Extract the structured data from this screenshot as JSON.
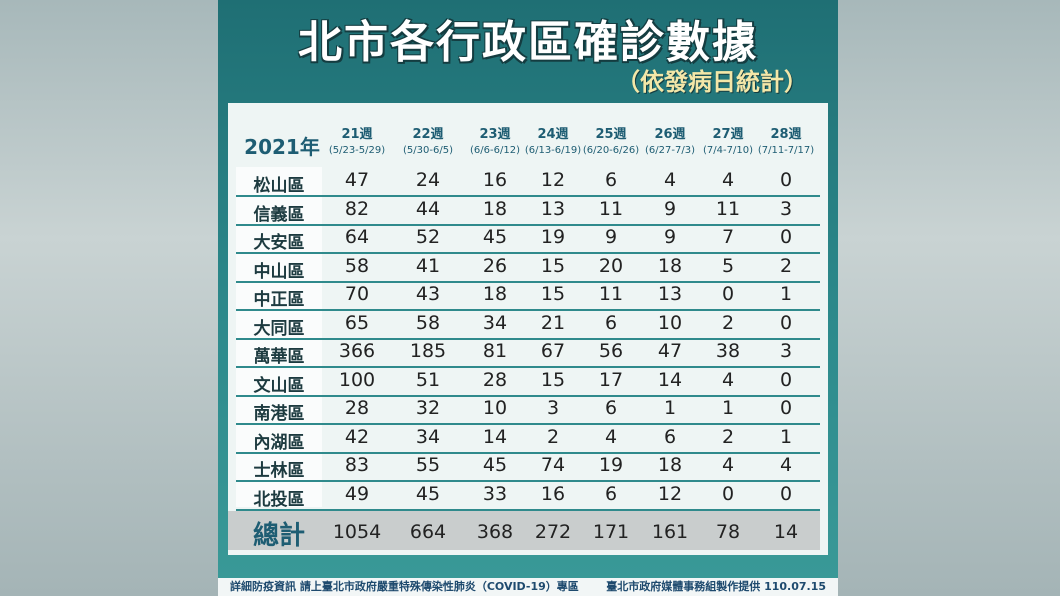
{
  "header": {
    "title": "北市各行政區確診數據",
    "subtitle": "（依發病日統計）"
  },
  "table": {
    "year_label": "2021年",
    "columns": [
      {
        "week": "21週",
        "range": "(5/23-5/29)"
      },
      {
        "week": "22週",
        "range": "(5/30-6/5)"
      },
      {
        "week": "23週",
        "range": "(6/6-6/12)"
      },
      {
        "week": "24週",
        "range": "(6/13-6/19)"
      },
      {
        "week": "25週",
        "range": "(6/20-6/26)"
      },
      {
        "week": "26週",
        "range": "(6/27-7/3)"
      },
      {
        "week": "27週",
        "range": "(7/4-7/10)"
      },
      {
        "week": "28週",
        "range": "(7/11-7/17)"
      }
    ],
    "rows": [
      {
        "name": "松山區",
        "values": [
          47,
          24,
          16,
          12,
          6,
          4,
          4,
          0
        ]
      },
      {
        "name": "信義區",
        "values": [
          82,
          44,
          18,
          13,
          11,
          9,
          11,
          3
        ]
      },
      {
        "name": "大安區",
        "values": [
          64,
          52,
          45,
          19,
          9,
          9,
          7,
          0
        ]
      },
      {
        "name": "中山區",
        "values": [
          58,
          41,
          26,
          15,
          20,
          18,
          5,
          2
        ]
      },
      {
        "name": "中正區",
        "values": [
          70,
          43,
          18,
          15,
          11,
          13,
          0,
          1
        ]
      },
      {
        "name": "大同區",
        "values": [
          65,
          58,
          34,
          21,
          6,
          10,
          2,
          0
        ]
      },
      {
        "name": "萬華區",
        "values": [
          366,
          185,
          81,
          67,
          56,
          47,
          38,
          3
        ]
      },
      {
        "name": "文山區",
        "values": [
          100,
          51,
          28,
          15,
          17,
          14,
          4,
          0
        ]
      },
      {
        "name": "南港區",
        "values": [
          28,
          32,
          10,
          3,
          6,
          1,
          1,
          0
        ]
      },
      {
        "name": "內湖區",
        "values": [
          42,
          34,
          14,
          2,
          4,
          6,
          2,
          1
        ]
      },
      {
        "name": "士林區",
        "values": [
          83,
          55,
          45,
          74,
          19,
          18,
          4,
          4
        ]
      },
      {
        "name": "北投區",
        "values": [
          49,
          45,
          33,
          16,
          6,
          12,
          0,
          0
        ]
      }
    ],
    "total": {
      "name": "總計",
      "values": [
        1054,
        664,
        368,
        272,
        171,
        161,
        78,
        14
      ]
    }
  },
  "footer": {
    "info": "詳細防疫資訊 請上臺北市政府嚴重特殊傳染性肺炎（COVID-19）專區",
    "credit": "臺北市政府媒體事務組製作提供 110.07.15"
  }
}
